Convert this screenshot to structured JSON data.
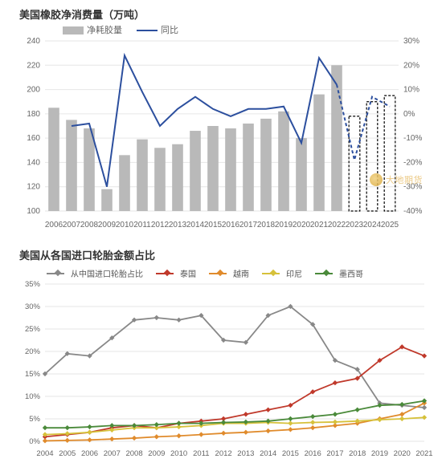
{
  "chart1": {
    "title": "美国橡胶净消费量（万吨）",
    "type": "bar+line",
    "legend": [
      {
        "label": "净耗胶量",
        "kind": "bar",
        "swatch": "#b9b9b9"
      },
      {
        "label": "同比",
        "kind": "line",
        "color": "#2c4f9e"
      }
    ],
    "x_categories": [
      "2006",
      "2007",
      "2008",
      "2009",
      "2010",
      "2011",
      "2012",
      "2013",
      "2014",
      "2015",
      "2016",
      "2017",
      "2018",
      "2019",
      "2020",
      "2021",
      "2022",
      "2023",
      "2024",
      "2025"
    ],
    "y_left": {
      "min": 100,
      "max": 240,
      "step": 20,
      "label_fmt": ""
    },
    "y_right": {
      "min": -40,
      "max": 30,
      "step": 10,
      "label_fmt": "%"
    },
    "bars": {
      "color": "#b9b9b9",
      "values": [
        185,
        175,
        168,
        118,
        146,
        159,
        152,
        155,
        166,
        170,
        168,
        172,
        176,
        182,
        160,
        196,
        220,
        178,
        190,
        195
      ],
      "dashed_from": 17,
      "dash_color": "#000",
      "width_frac": 0.62
    },
    "line": {
      "color": "#2c4f9e",
      "width": 2,
      "values": [
        null,
        -5,
        -4,
        -30,
        24,
        9,
        -5,
        2,
        7,
        2,
        -1,
        2,
        2,
        3,
        -12,
        23,
        12,
        -19,
        7,
        3
      ],
      "dashed_from": 17
    },
    "grid_color": "#e6e6e6",
    "axis_color": "#cccccc",
    "background": "#ffffff",
    "tick_fontsize": 10
  },
  "chart2": {
    "title": "美国从各国进口轮胎金额占比",
    "type": "line",
    "x_categories": [
      "2004",
      "2005",
      "2006",
      "2007",
      "2008",
      "2009",
      "2010",
      "2011",
      "2012",
      "2013",
      "2014",
      "2015",
      "2016",
      "2017",
      "2018",
      "2019",
      "2020",
      "2021"
    ],
    "y": {
      "min": 0,
      "max": 35,
      "step": 5,
      "label_fmt": "%"
    },
    "grid_color": "#e6e6e6",
    "axis_color": "#cccccc",
    "background": "#ffffff",
    "tick_fontsize": 9.5,
    "series": [
      {
        "name": "从中国进口轮胎占比",
        "color": "#888888",
        "values": [
          15,
          19.5,
          19,
          23,
          27,
          27.5,
          27,
          28,
          22.5,
          22,
          28,
          30,
          26,
          18,
          16,
          8.5,
          8,
          7.5
        ]
      },
      {
        "name": "泰国",
        "color": "#c0392b",
        "values": [
          1,
          1.5,
          2,
          3,
          3.5,
          3,
          4,
          4.5,
          5,
          6,
          7,
          8,
          11,
          13,
          14,
          18,
          21,
          19
        ]
      },
      {
        "name": "越南",
        "color": "#e08b2c",
        "values": [
          0.1,
          0.2,
          0.3,
          0.5,
          0.7,
          1,
          1.2,
          1.5,
          1.8,
          2,
          2.3,
          2.6,
          3,
          3.5,
          4,
          5,
          6,
          8.5
        ]
      },
      {
        "name": "印尼",
        "color": "#d6c13a",
        "values": [
          1.5,
          1.7,
          2,
          2.5,
          3,
          3,
          3.2,
          3.5,
          4,
          4,
          4.2,
          4,
          4.2,
          4.3,
          4.5,
          4.8,
          5,
          5.3
        ]
      },
      {
        "name": "墨西哥",
        "color": "#4a8a3a",
        "values": [
          3,
          3,
          3.2,
          3.5,
          3.5,
          3.7,
          4,
          4,
          4.2,
          4.3,
          4.5,
          5,
          5.5,
          6,
          7,
          8,
          8.2,
          9
        ]
      }
    ],
    "line_width": 1.8,
    "marker_size": 3.2
  },
  "watermark": "大地期货"
}
